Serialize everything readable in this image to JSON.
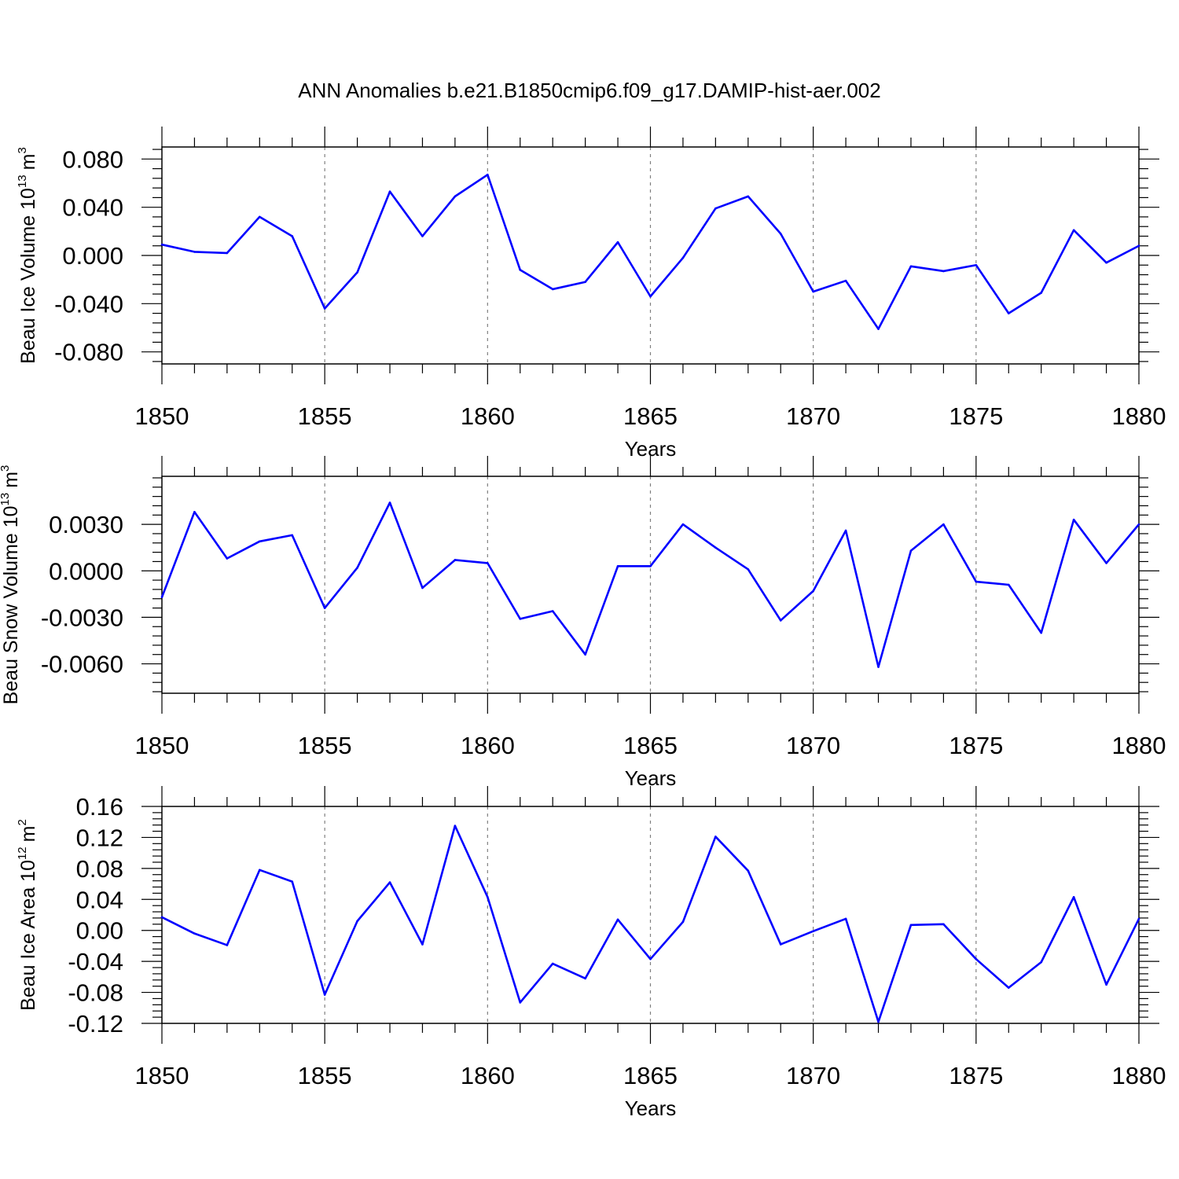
{
  "title": "ANN Anomalies b.e21.B1850cmip6.f09_g17.DAMIP-hist-aer.002",
  "colors": {
    "line": "#0000ff",
    "axis": "#000000",
    "grid": "#808080",
    "background": "#ffffff"
  },
  "chart_data": [
    {
      "type": "line",
      "ylabel_main": "Beau Ice Volume 10",
      "ylabel_exp": "13",
      "ylabel_unit": "m",
      "ylabel_unit_exp": "3",
      "xlabel": "Years",
      "xlim": [
        1850,
        1880
      ],
      "ylim": [
        -0.09,
        0.09
      ],
      "xticks": [
        "1850",
        "1855",
        "1860",
        "1865",
        "1870",
        "1875",
        "1880"
      ],
      "yticks": [
        0.08,
        0.04,
        0.0,
        -0.04,
        -0.08
      ],
      "ytick_labels": [
        "0.080",
        "0.040",
        "0.000",
        "-0.040",
        "-0.080"
      ],
      "grid_x": "dashed at major x ticks",
      "series": [
        {
          "x": [
            1850,
            1851,
            1852,
            1853,
            1854,
            1855,
            1856,
            1857,
            1858,
            1859,
            1860,
            1861,
            1862,
            1863,
            1864,
            1865,
            1866,
            1867,
            1868,
            1869,
            1870,
            1871,
            1872,
            1873,
            1874,
            1875,
            1876,
            1877,
            1878,
            1879,
            1880
          ],
          "values": [
            0.009,
            0.003,
            0.002,
            0.032,
            0.016,
            -0.044,
            -0.014,
            0.053,
            0.016,
            0.049,
            0.067,
            -0.012,
            -0.028,
            -0.022,
            0.011,
            -0.034,
            -0.002,
            0.039,
            0.049,
            0.018,
            -0.03,
            -0.021,
            -0.061,
            -0.009,
            -0.013,
            -0.008,
            -0.048,
            -0.031,
            0.021,
            -0.006,
            0.008
          ]
        }
      ]
    },
    {
      "type": "line",
      "ylabel_main": "Beau Snow Volume 10",
      "ylabel_exp": "13",
      "ylabel_unit": "m",
      "ylabel_unit_exp": "3",
      "xlabel": "Years",
      "xlim": [
        1850,
        1880
      ],
      "ylim": [
        -0.0079,
        0.0061
      ],
      "xticks": [
        "1850",
        "1855",
        "1860",
        "1865",
        "1870",
        "1875",
        "1880"
      ],
      "yticks": [
        0.003,
        0.0,
        -0.003,
        -0.006
      ],
      "ytick_labels": [
        "0.0030",
        "0.0000",
        "-0.0030",
        "-0.0060"
      ],
      "grid_x": "dashed at major x ticks",
      "series": [
        {
          "x": [
            1850,
            1851,
            1852,
            1853,
            1854,
            1855,
            1856,
            1857,
            1858,
            1859,
            1860,
            1861,
            1862,
            1863,
            1864,
            1865,
            1866,
            1867,
            1868,
            1869,
            1870,
            1871,
            1872,
            1873,
            1874,
            1875,
            1876,
            1877,
            1878,
            1879,
            1880
          ],
          "values": [
            -0.0017,
            0.0038,
            0.0008,
            0.0019,
            0.0023,
            -0.0024,
            0.0002,
            0.0044,
            -0.0011,
            0.0007,
            0.0005,
            -0.0031,
            -0.0026,
            -0.0054,
            0.0003,
            0.0003,
            0.003,
            0.0015,
            0.0001,
            -0.0032,
            -0.0013,
            0.0026,
            -0.0062,
            0.0013,
            0.003,
            -0.0007,
            -0.0009,
            -0.004,
            0.0033,
            0.0005,
            0.003
          ]
        }
      ]
    },
    {
      "type": "line",
      "ylabel_main": "Beau Ice Area 10",
      "ylabel_exp": "12",
      "ylabel_unit": "m",
      "ylabel_unit_exp": "2",
      "xlabel": "Years",
      "xlim": [
        1850,
        1880
      ],
      "ylim": [
        -0.12,
        0.16
      ],
      "xticks": [
        "1850",
        "1855",
        "1860",
        "1865",
        "1870",
        "1875",
        "1880"
      ],
      "yticks": [
        0.16,
        0.12,
        0.08,
        0.04,
        0.0,
        -0.04,
        -0.08,
        -0.12
      ],
      "ytick_labels": [
        "0.16",
        "0.12",
        "0.08",
        "0.04",
        "0.00",
        "-0.04",
        "-0.08",
        "-0.12"
      ],
      "grid_x": "dashed at major x ticks",
      "series": [
        {
          "x": [
            1850,
            1851,
            1852,
            1853,
            1854,
            1855,
            1856,
            1857,
            1858,
            1859,
            1860,
            1861,
            1862,
            1863,
            1864,
            1865,
            1866,
            1867,
            1868,
            1869,
            1870,
            1871,
            1872,
            1873,
            1874,
            1875,
            1876,
            1877,
            1878,
            1879,
            1880
          ],
          "values": [
            0.017,
            -0.004,
            -0.019,
            0.078,
            0.063,
            -0.083,
            0.012,
            0.062,
            -0.018,
            0.135,
            0.043,
            -0.093,
            -0.043,
            -0.062,
            0.014,
            -0.037,
            0.011,
            0.121,
            0.077,
            -0.018,
            -0.001,
            0.015,
            -0.118,
            0.007,
            0.008,
            -0.037,
            -0.074,
            -0.041,
            0.043,
            -0.07,
            0.015
          ]
        }
      ]
    }
  ]
}
